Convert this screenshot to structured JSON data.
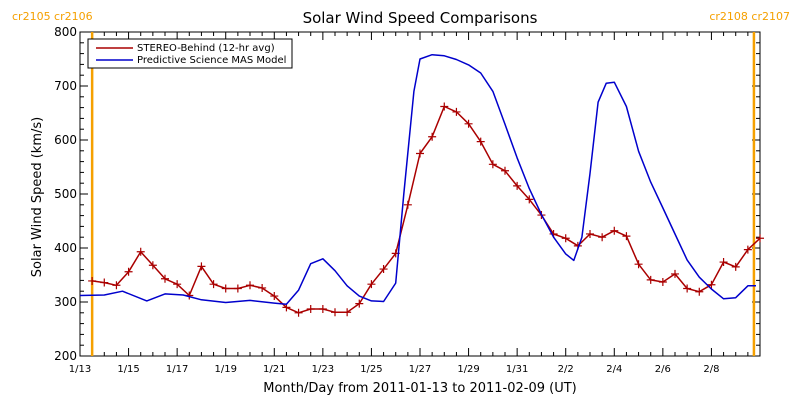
{
  "chart_data": {
    "type": "line",
    "title": "Solar Wind Speed Comparisons",
    "xlabel": "Month/Day from 2011-01-13 to 2011-02-09 (UT)",
    "ylabel": "Solar Wind Speed (km/s)",
    "xlim": [
      "2011-01-13",
      "2011-02-09"
    ],
    "ylim": [
      200,
      800
    ],
    "x_tick_labels": [
      "1/13",
      "1/15",
      "1/17",
      "1/19",
      "1/21",
      "1/23",
      "1/25",
      "1/27",
      "1/29",
      "1/31",
      "2/2",
      "2/4",
      "2/6",
      "2/8"
    ],
    "y_tick_labels": [
      "200",
      "300",
      "400",
      "500",
      "600",
      "700",
      "800"
    ],
    "legend_position": "top-left",
    "carrington_labels": {
      "left": "cr2105 cr2106",
      "right": "cr2108 cr2107",
      "color": "#f5a000",
      "left_line_date": "2011-01-13T12:00",
      "right_line_date": "2011-02-09T18:00"
    },
    "series": [
      {
        "name": "STEREO-Behind (12-hr avg)",
        "color": "#aa0000",
        "marker": "plus",
        "points": [
          [
            "2011-01-13T12:00",
            339
          ],
          [
            "2011-01-14T00:00",
            336
          ],
          [
            "2011-01-14T12:00",
            331
          ],
          [
            "2011-01-15T00:00",
            356
          ],
          [
            "2011-01-15T12:00",
            393
          ],
          [
            "2011-01-16T00:00",
            368
          ],
          [
            "2011-01-16T12:00",
            343
          ],
          [
            "2011-01-17T00:00",
            333
          ],
          [
            "2011-01-17T12:00",
            312
          ],
          [
            "2011-01-18T00:00",
            366
          ],
          [
            "2011-01-18T12:00",
            333
          ],
          [
            "2011-01-19T00:00",
            325
          ],
          [
            "2011-01-19T12:00",
            325
          ],
          [
            "2011-01-20T00:00",
            331
          ],
          [
            "2011-01-20T12:00",
            326
          ],
          [
            "2011-01-21T00:00",
            311
          ],
          [
            "2011-01-21T12:00",
            290
          ],
          [
            "2011-01-22T00:00",
            280
          ],
          [
            "2011-01-22T12:00",
            287
          ],
          [
            "2011-01-23T00:00",
            287
          ],
          [
            "2011-01-23T12:00",
            281
          ],
          [
            "2011-01-24T00:00",
            281
          ],
          [
            "2011-01-24T12:00",
            297
          ],
          [
            "2011-01-25T00:00",
            333
          ],
          [
            "2011-01-25T12:00",
            361
          ],
          [
            "2011-01-26T00:00",
            390
          ],
          [
            "2011-01-26T12:00",
            480
          ],
          [
            "2011-01-27T00:00",
            575
          ],
          [
            "2011-01-27T12:00",
            606
          ],
          [
            "2011-01-28T00:00",
            662
          ],
          [
            "2011-01-28T12:00",
            652
          ],
          [
            "2011-01-29T00:00",
            630
          ],
          [
            "2011-01-29T12:00",
            597
          ],
          [
            "2011-01-30T00:00",
            555
          ],
          [
            "2011-01-30T12:00",
            543
          ],
          [
            "2011-01-31T00:00",
            515
          ],
          [
            "2011-01-31T12:00",
            490
          ],
          [
            "2011-02-01T00:00",
            461
          ],
          [
            "2011-02-01T12:00",
            426
          ],
          [
            "2011-02-02T00:00",
            418
          ],
          [
            "2011-02-02T12:00",
            404
          ],
          [
            "2011-02-03T00:00",
            426
          ],
          [
            "2011-02-03T12:00",
            420
          ],
          [
            "2011-02-04T00:00",
            432
          ],
          [
            "2011-02-04T12:00",
            422
          ],
          [
            "2011-02-05T00:00",
            370
          ],
          [
            "2011-02-05T12:00",
            341
          ],
          [
            "2011-02-06T00:00",
            337
          ],
          [
            "2011-02-06T12:00",
            352
          ],
          [
            "2011-02-07T00:00",
            325
          ],
          [
            "2011-02-07T12:00",
            319
          ],
          [
            "2011-02-08T00:00",
            332
          ],
          [
            "2011-02-08T12:00",
            374
          ],
          [
            "2011-02-09T00:00",
            365
          ],
          [
            "2011-02-09T12:00",
            397
          ],
          [
            "2011-02-10T00:00",
            418
          ]
        ]
      },
      {
        "name": "Predictive Science MAS Model",
        "color": "#0000cc",
        "marker": "none",
        "points": [
          [
            "2011-01-13T00:00",
            312
          ],
          [
            "2011-01-14T00:00",
            313
          ],
          [
            "2011-01-14T18:00",
            320
          ],
          [
            "2011-01-15T18:00",
            302
          ],
          [
            "2011-01-16T12:00",
            315
          ],
          [
            "2011-01-17T06:00",
            313
          ],
          [
            "2011-01-18T00:00",
            304
          ],
          [
            "2011-01-19T00:00",
            299
          ],
          [
            "2011-01-20T00:00",
            303
          ],
          [
            "2011-01-21T00:00",
            298
          ],
          [
            "2011-01-21T12:00",
            296
          ],
          [
            "2011-01-22T00:00",
            322
          ],
          [
            "2011-01-22T12:00",
            371
          ],
          [
            "2011-01-23T00:00",
            380
          ],
          [
            "2011-01-23T12:00",
            358
          ],
          [
            "2011-01-24T00:00",
            330
          ],
          [
            "2011-01-24T12:00",
            311
          ],
          [
            "2011-01-25T00:00",
            302
          ],
          [
            "2011-01-25T12:00",
            301
          ],
          [
            "2011-01-26T00:00",
            335
          ],
          [
            "2011-01-26T08:00",
            500
          ],
          [
            "2011-01-26T18:00",
            690
          ],
          [
            "2011-01-27T00:00",
            750
          ],
          [
            "2011-01-27T12:00",
            758
          ],
          [
            "2011-01-28T00:00",
            756
          ],
          [
            "2011-01-28T12:00",
            749
          ],
          [
            "2011-01-29T00:00",
            739
          ],
          [
            "2011-01-29T12:00",
            724
          ],
          [
            "2011-01-30T00:00",
            690
          ],
          [
            "2011-01-30T12:00",
            629
          ],
          [
            "2011-01-31T00:00",
            567
          ],
          [
            "2011-01-31T12:00",
            510
          ],
          [
            "2011-02-01T00:00",
            462
          ],
          [
            "2011-02-01T12:00",
            420
          ],
          [
            "2011-02-02T00:00",
            389
          ],
          [
            "2011-02-02T08:00",
            377
          ],
          [
            "2011-02-02T16:00",
            420
          ],
          [
            "2011-02-03T00:00",
            538
          ],
          [
            "2011-02-03T08:00",
            670
          ],
          [
            "2011-02-03T16:00",
            705
          ],
          [
            "2011-02-04T00:00",
            707
          ],
          [
            "2011-02-04T12:00",
            662
          ],
          [
            "2011-02-05T00:00",
            579
          ],
          [
            "2011-02-05T12:00",
            522
          ],
          [
            "2011-02-06T00:00",
            474
          ],
          [
            "2011-02-06T12:00",
            426
          ],
          [
            "2011-02-07T00:00",
            378
          ],
          [
            "2011-02-07T12:00",
            346
          ],
          [
            "2011-02-08T00:00",
            324
          ],
          [
            "2011-02-08T12:00",
            306
          ],
          [
            "2011-02-09T00:00",
            308
          ],
          [
            "2011-02-09T12:00",
            330
          ],
          [
            "2011-02-09T20:00",
            330
          ]
        ]
      }
    ]
  }
}
